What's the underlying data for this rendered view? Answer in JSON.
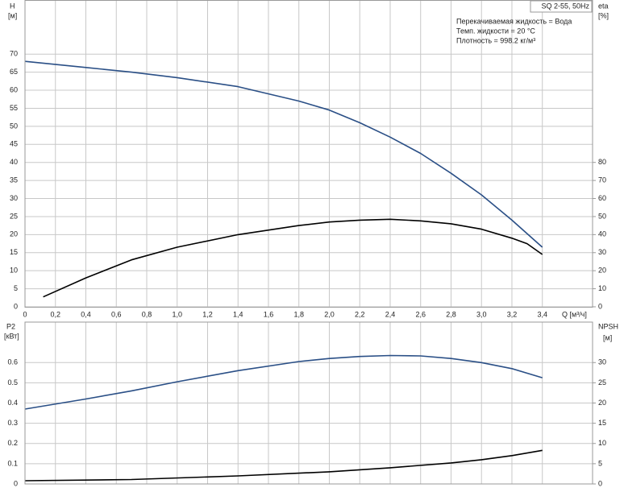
{
  "chart_data": [
    {
      "type": "line",
      "title": "SQ 2-55, 50Hz",
      "annotations": [
        "Перекачиваемая жидкость = Вода",
        "Темп. жидкости = 20 °C",
        "Плотность = 998.2 кг/м³"
      ],
      "xlabel": "Q [м³/ч]",
      "ylabel": "H",
      "yunit": "[м]",
      "y2label": "eta",
      "y2unit": "[%]",
      "xlim": [
        0,
        3.73
      ],
      "xticks": [
        0,
        {
          "value": 0.2,
          "label": "0,2"
        },
        {
          "value": 0.4,
          "label": "0,4"
        },
        {
          "value": 0.6,
          "label": "0,6"
        },
        {
          "value": 0.8,
          "label": "0,8"
        },
        {
          "value": 1.0,
          "label": "1,0"
        },
        {
          "value": 1.2,
          "label": "1,2"
        },
        {
          "value": 1.4,
          "label": "1,4"
        },
        {
          "value": 1.6,
          "label": "1,6"
        },
        {
          "value": 1.8,
          "label": "1,8"
        },
        {
          "value": 2.0,
          "label": "2,0"
        },
        {
          "value": 2.2,
          "label": "2,2"
        },
        {
          "value": 2.4,
          "label": "2,4"
        },
        {
          "value": 2.6,
          "label": "2,6"
        },
        {
          "value": 2.8,
          "label": "2,8"
        },
        {
          "value": 3.0,
          "label": "3,0"
        },
        {
          "value": 3.2,
          "label": "3,2"
        },
        {
          "value": 3.4,
          "label": "3,4"
        }
      ],
      "ylim": [
        0,
        85
      ],
      "yticks": [
        0,
        5,
        10,
        15,
        20,
        25,
        30,
        35,
        40,
        45,
        50,
        55,
        60,
        65,
        70
      ],
      "y2lim": [
        0,
        170
      ],
      "y2ticks": [
        0,
        10,
        20,
        30,
        40,
        50,
        60,
        70,
        80
      ],
      "grid": true,
      "series": [
        {
          "color": "#2a4f86",
          "x": [
            0,
            0.4,
            0.7,
            1.0,
            1.4,
            1.8,
            2.0,
            2.2,
            2.4,
            2.6,
            2.8,
            3.0,
            3.2,
            3.4
          ],
          "values": [
            68,
            66.3,
            65,
            63.5,
            61,
            57,
            54.5,
            51,
            47,
            42.5,
            37,
            31,
            24,
            16.5
          ]
        },
        {
          "color": "#000000",
          "axis": "y2",
          "x": [
            0.12,
            0.4,
            0.7,
            1.0,
            1.4,
            1.8,
            2.0,
            2.2,
            2.4,
            2.6,
            2.8,
            3.0,
            3.2,
            3.3,
            3.4
          ],
          "values": [
            5.5,
            16,
            26,
            33,
            40,
            45,
            47,
            48,
            48.5,
            47.6,
            46,
            43,
            38,
            35,
            29
          ]
        }
      ]
    },
    {
      "type": "line",
      "ylabel": "P2",
      "yunit": "[кВт]",
      "y2label": "NPSH",
      "y2unit": "[м]",
      "xlim": [
        0,
        3.73
      ],
      "ylim": [
        0,
        0.8
      ],
      "yticks": [
        0,
        0.1,
        0.2,
        0.3,
        0.4,
        0.5,
        0.6
      ],
      "y2lim": [
        0,
        40
      ],
      "y2ticks": [
        0,
        5,
        10,
        15,
        20,
        25,
        30
      ],
      "grid": true,
      "series": [
        {
          "color": "#2a4f86",
          "x": [
            0,
            0.4,
            0.7,
            1.0,
            1.4,
            1.8,
            2.0,
            2.2,
            2.4,
            2.6,
            2.8,
            3.0,
            3.2,
            3.4
          ],
          "values": [
            0.37,
            0.42,
            0.46,
            0.505,
            0.56,
            0.605,
            0.62,
            0.63,
            0.635,
            0.633,
            0.62,
            0.6,
            0.57,
            0.525
          ]
        },
        {
          "color": "#000000",
          "axis": "y2",
          "x": [
            0,
            0.7,
            1.4,
            2.0,
            2.4,
            2.8,
            3.0,
            3.2,
            3.4
          ],
          "values": [
            0.8,
            1.1,
            2,
            3,
            4,
            5.2,
            6,
            7,
            8.3
          ]
        }
      ]
    }
  ]
}
